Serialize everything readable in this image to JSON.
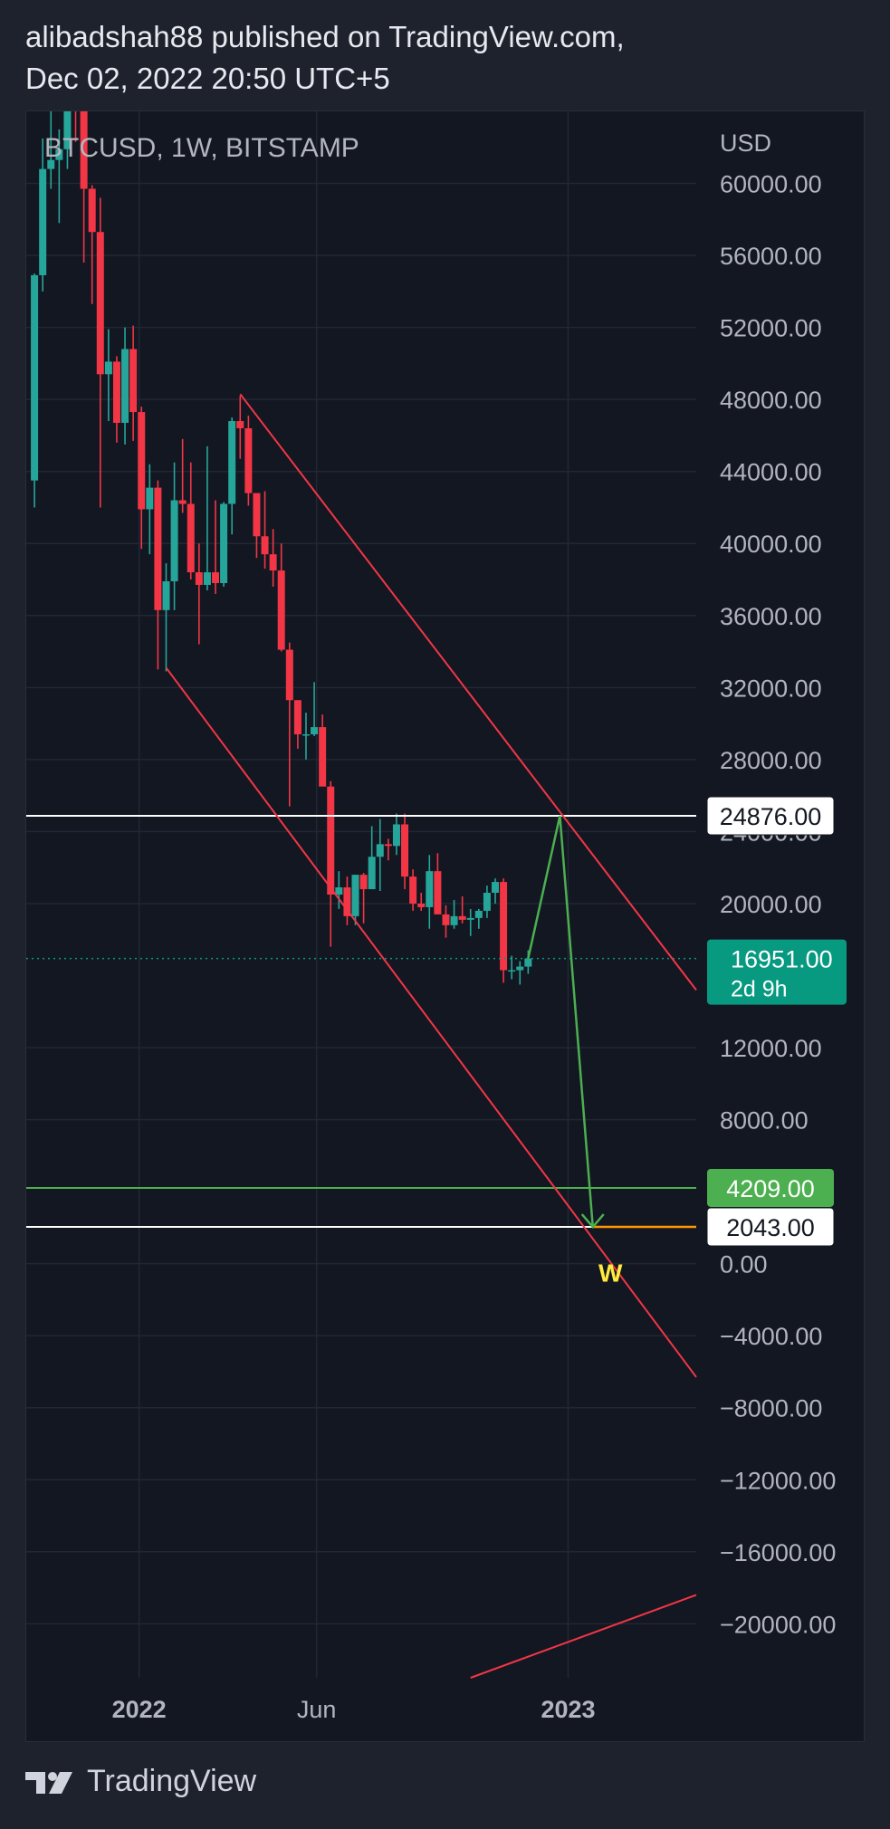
{
  "header": {
    "line1": "alibadshah88 published on TradingView.com,",
    "line2": "Dec 02, 2022 20:50 UTC+5"
  },
  "footer": {
    "brand": "TradingView"
  },
  "colors": {
    "up": "#26a69a",
    "down": "#f23645",
    "channel": "#f23645",
    "projection": "#4caf50",
    "target": "#ff9800",
    "label_w": "#ffeb3b",
    "last_price_bg": "#089981",
    "level_green_bg": "#4caf50",
    "white_level": "#ffffff"
  },
  "chart_data": {
    "type": "candlestick",
    "title": "BTCUSD, 1W, BITSTAMP",
    "currency": "USD",
    "y_range": [
      -23000,
      64000
    ],
    "y_ticks": [
      "60000.00",
      "56000.00",
      "52000.00",
      "48000.00",
      "44000.00",
      "40000.00",
      "36000.00",
      "32000.00",
      "28000.00",
      "24000.00",
      "20000.00",
      "12000.00",
      "8000.00",
      "0.00",
      "−4000.00",
      "−8000.00",
      "−12000.00",
      "−16000.00",
      "−20000.00"
    ],
    "x_ticks": [
      {
        "label": "2022",
        "date": "2022-01-01"
      },
      {
        "label": "Jun",
        "date": "2022-06-01"
      },
      {
        "label": "2023",
        "date": "2023-01-01"
      }
    ],
    "x_range": [
      "2021-09-27",
      "2023-04-20"
    ],
    "candles": [
      {
        "date": "2021-10-04",
        "o": 43500,
        "h": 55000,
        "l": 42000,
        "c": 54900
      },
      {
        "date": "2021-10-11",
        "o": 54900,
        "h": 62500,
        "l": 54000,
        "c": 60800
      },
      {
        "date": "2021-10-18",
        "o": 60800,
        "h": 67000,
        "l": 59700,
        "c": 61300
      },
      {
        "date": "2021-10-25",
        "o": 61300,
        "h": 63000,
        "l": 57800,
        "c": 61900
      },
      {
        "date": "2021-11-01",
        "o": 61900,
        "h": 66000,
        "l": 60800,
        "c": 64700
      },
      {
        "date": "2021-11-08",
        "o": 64700,
        "h": 69000,
        "l": 62300,
        "c": 64200
      },
      {
        "date": "2021-11-15",
        "o": 64200,
        "h": 64500,
        "l": 55600,
        "c": 59700
      },
      {
        "date": "2021-11-22",
        "o": 59700,
        "h": 59900,
        "l": 53300,
        "c": 57300
      },
      {
        "date": "2021-11-29",
        "o": 57300,
        "h": 59200,
        "l": 42000,
        "c": 49400
      },
      {
        "date": "2021-12-06",
        "o": 49400,
        "h": 51900,
        "l": 46800,
        "c": 50100
      },
      {
        "date": "2021-12-13",
        "o": 50100,
        "h": 50400,
        "l": 45600,
        "c": 46700
      },
      {
        "date": "2021-12-20",
        "o": 46700,
        "h": 52000,
        "l": 45500,
        "c": 50800
      },
      {
        "date": "2021-12-27",
        "o": 50800,
        "h": 52100,
        "l": 45700,
        "c": 47300
      },
      {
        "date": "2022-01-03",
        "o": 47300,
        "h": 47600,
        "l": 39700,
        "c": 41900
      },
      {
        "date": "2022-01-10",
        "o": 41900,
        "h": 44400,
        "l": 39400,
        "c": 43100
      },
      {
        "date": "2022-01-17",
        "o": 43100,
        "h": 43500,
        "l": 33000,
        "c": 36300
      },
      {
        "date": "2022-01-24",
        "o": 36300,
        "h": 38900,
        "l": 32900,
        "c": 37900
      },
      {
        "date": "2022-01-31",
        "o": 37900,
        "h": 44500,
        "l": 36300,
        "c": 42400
      },
      {
        "date": "2022-02-07",
        "o": 42400,
        "h": 45800,
        "l": 41700,
        "c": 42200
      },
      {
        "date": "2022-02-14",
        "o": 42200,
        "h": 44500,
        "l": 38000,
        "c": 38400
      },
      {
        "date": "2022-02-21",
        "o": 38400,
        "h": 40000,
        "l": 34400,
        "c": 37700
      },
      {
        "date": "2022-02-28",
        "o": 37700,
        "h": 45400,
        "l": 37400,
        "c": 38400
      },
      {
        "date": "2022-03-07",
        "o": 38400,
        "h": 42400,
        "l": 37200,
        "c": 37800
      },
      {
        "date": "2022-03-14",
        "o": 37800,
        "h": 42300,
        "l": 37600,
        "c": 42200
      },
      {
        "date": "2022-03-21",
        "o": 42200,
        "h": 47000,
        "l": 40500,
        "c": 46800
      },
      {
        "date": "2022-03-28",
        "o": 46800,
        "h": 48200,
        "l": 44700,
        "c": 46400
      },
      {
        "date": "2022-04-04",
        "o": 46400,
        "h": 47100,
        "l": 42100,
        "c": 42800
      },
      {
        "date": "2022-04-11",
        "o": 42800,
        "h": 42400,
        "l": 39200,
        "c": 40400
      },
      {
        "date": "2022-04-18",
        "o": 40400,
        "h": 42900,
        "l": 38600,
        "c": 39400
      },
      {
        "date": "2022-04-25",
        "o": 39400,
        "h": 40800,
        "l": 37600,
        "c": 38500
      },
      {
        "date": "2022-05-02",
        "o": 38500,
        "h": 40000,
        "l": 34000,
        "c": 34100
      },
      {
        "date": "2022-05-09",
        "o": 34100,
        "h": 34500,
        "l": 25400,
        "c": 31300
      },
      {
        "date": "2022-05-16",
        "o": 31300,
        "h": 31300,
        "l": 28600,
        "c": 29400
      },
      {
        "date": "2022-05-23",
        "o": 29400,
        "h": 30600,
        "l": 28000,
        "c": 29400
      },
      {
        "date": "2022-05-30",
        "o": 29400,
        "h": 32300,
        "l": 29300,
        "c": 29800
      },
      {
        "date": "2022-06-06",
        "o": 29800,
        "h": 30500,
        "l": 26600,
        "c": 26500
      },
      {
        "date": "2022-06-13",
        "o": 26500,
        "h": 26800,
        "l": 17600,
        "c": 20500
      },
      {
        "date": "2022-06-20",
        "o": 20500,
        "h": 21800,
        "l": 19700,
        "c": 20900
      },
      {
        "date": "2022-06-27",
        "o": 20900,
        "h": 21500,
        "l": 18800,
        "c": 19300
      },
      {
        "date": "2022-07-04",
        "o": 19300,
        "h": 21600,
        "l": 18800,
        "c": 21600
      },
      {
        "date": "2022-07-11",
        "o": 21600,
        "h": 21700,
        "l": 18900,
        "c": 20800
      },
      {
        "date": "2022-07-18",
        "o": 20800,
        "h": 24300,
        "l": 20800,
        "c": 22600
      },
      {
        "date": "2022-07-25",
        "o": 22600,
        "h": 24700,
        "l": 20700,
        "c": 23300
      },
      {
        "date": "2022-08-01",
        "o": 23300,
        "h": 23600,
        "l": 22400,
        "c": 23200
      },
      {
        "date": "2022-08-08",
        "o": 23200,
        "h": 25000,
        "l": 22700,
        "c": 24400
      },
      {
        "date": "2022-08-15",
        "o": 24400,
        "h": 25000,
        "l": 20800,
        "c": 21500
      },
      {
        "date": "2022-08-22",
        "o": 21500,
        "h": 21900,
        "l": 19600,
        "c": 20000
      },
      {
        "date": "2022-08-29",
        "o": 20000,
        "h": 20600,
        "l": 19600,
        "c": 19800
      },
      {
        "date": "2022-09-05",
        "o": 19800,
        "h": 22700,
        "l": 18600,
        "c": 21800
      },
      {
        "date": "2022-09-12",
        "o": 21800,
        "h": 22800,
        "l": 19400,
        "c": 19400
      },
      {
        "date": "2022-09-19",
        "o": 19400,
        "h": 19900,
        "l": 18100,
        "c": 18800
      },
      {
        "date": "2022-09-26",
        "o": 18800,
        "h": 20200,
        "l": 18600,
        "c": 19300
      },
      {
        "date": "2022-10-03",
        "o": 19300,
        "h": 20400,
        "l": 18900,
        "c": 19100
      },
      {
        "date": "2022-10-10",
        "o": 19100,
        "h": 19700,
        "l": 18200,
        "c": 19200
      },
      {
        "date": "2022-10-17",
        "o": 19200,
        "h": 19700,
        "l": 18600,
        "c": 19600
      },
      {
        "date": "2022-10-24",
        "o": 19600,
        "h": 21000,
        "l": 19200,
        "c": 20600
      },
      {
        "date": "2022-10-31",
        "o": 20600,
        "h": 21400,
        "l": 20000,
        "c": 21200
      },
      {
        "date": "2022-11-07",
        "o": 21200,
        "h": 21400,
        "l": 15600,
        "c": 16300
      },
      {
        "date": "2022-11-14",
        "o": 16300,
        "h": 17100,
        "l": 15800,
        "c": 16300
      },
      {
        "date": "2022-11-21",
        "o": 16300,
        "h": 16800,
        "l": 15500,
        "c": 16500
      },
      {
        "date": "2022-11-28",
        "o": 16500,
        "h": 17400,
        "l": 16100,
        "c": 16951
      }
    ],
    "channel": {
      "upper": [
        {
          "date": "2022-03-28",
          "v": 48300
        },
        {
          "date": "2023-04-20",
          "v": 15200
        }
      ],
      "lower": [
        {
          "date": "2022-01-24",
          "v": 33100
        },
        {
          "date": "2023-04-20",
          "v": -6300
        }
      ]
    },
    "bottom_line": [
      {
        "date": "2022-10-10",
        "v": -23000
      },
      {
        "date": "2023-04-20",
        "v": -18400
      }
    ],
    "projection": [
      {
        "date": "2022-11-28",
        "v": 16951
      },
      {
        "date": "2022-12-25",
        "v": 24876
      },
      {
        "date": "2023-01-22",
        "v": 2043
      }
    ],
    "target_line": [
      {
        "date": "2023-01-22",
        "v": 2043
      },
      {
        "date": "2023-04-20",
        "v": 2043
      }
    ],
    "levels": [
      {
        "value": 24876,
        "label": "24876.00",
        "style": "white"
      },
      {
        "value": 4209,
        "label": "4209.00",
        "style": "green"
      },
      {
        "value": 2043,
        "label": "2043.00",
        "style": "white"
      }
    ],
    "last_price": {
      "value": 16951,
      "label": "16951.00",
      "countdown": "2d 9h"
    },
    "annotation": {
      "text": "W",
      "date": "2023-02-06",
      "v": -1000
    }
  }
}
